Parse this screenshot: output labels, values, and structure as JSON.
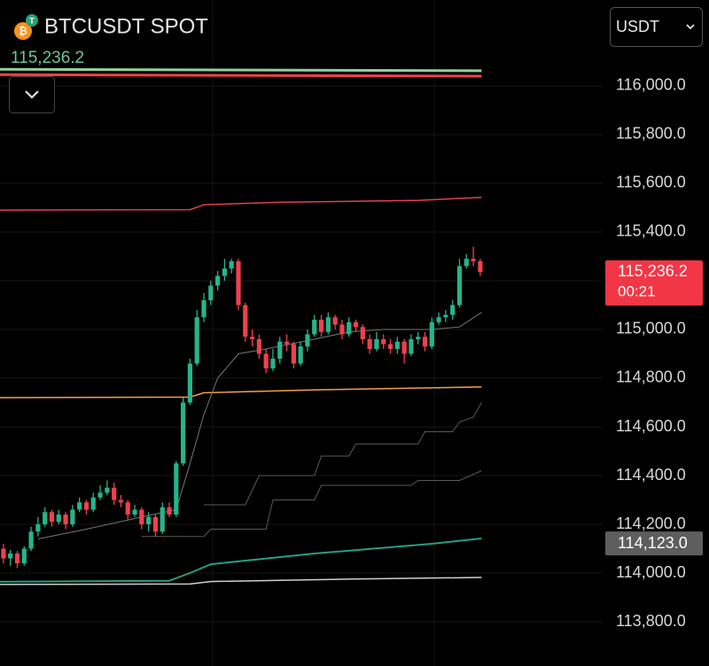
{
  "header": {
    "title": "BTCUSDT SPOT",
    "currency": "USDT"
  },
  "chart_data": {
    "type": "candlestick",
    "last_price": {
      "value": 115236.2,
      "label": "115,236.2"
    },
    "countdown": "00:21",
    "marker_price": {
      "value": 114123.0,
      "label": "114,123.0"
    },
    "up_color": "#26b48c",
    "down_color": "#f0404f",
    "xlim": [
      -0.5,
      69.4
    ],
    "ylim": [
      113618.2,
      116352.7
    ],
    "yticks": [
      {
        "value": 113800,
        "label": "113,800.0"
      },
      {
        "value": 114000,
        "label": "114,000.0"
      },
      {
        "value": 114200,
        "label": "114,200.0"
      },
      {
        "value": 114400,
        "label": "114,400.0"
      },
      {
        "value": 114600,
        "label": "114,600.0"
      },
      {
        "value": 114800,
        "label": "114,800.0"
      },
      {
        "value": 115000,
        "label": "115,000.0"
      },
      {
        "value": 115200,
        "label": "115,200.0"
      },
      {
        "value": 115400,
        "label": "115,400.0"
      },
      {
        "value": 115600,
        "label": "115,600.0"
      },
      {
        "value": 115800,
        "label": "115,800.0"
      },
      {
        "value": 116000,
        "label": "116,000.0"
      }
    ],
    "grid": true,
    "open": [
      114100,
      114060,
      114080,
      114040,
      114100,
      114170,
      114200,
      114250,
      114210,
      114240,
      114200,
      114260,
      114290,
      114260,
      114310,
      114330,
      114350,
      114300,
      114290,
      114240,
      114260,
      114200,
      114230,
      114170,
      114270,
      114240,
      114450,
      114700,
      114860,
      115050,
      115120,
      115180,
      115220,
      115250,
      115280,
      115100,
      114970,
      114960,
      114900,
      114840,
      114880,
      114950,
      114940,
      114860,
      114930,
      114980,
      115040,
      114990,
      115050,
      115020,
      114980,
      115030,
      115010,
      114960,
      114920,
      114960,
      114940,
      114920,
      114950,
      114900,
      114960,
      114970,
      114930,
      115030,
      115050,
      115060,
      115100,
      115260,
      115290,
      115280
    ],
    "high": [
      114120,
      114095,
      114090,
      114110,
      114190,
      114230,
      114270,
      114260,
      114260,
      114250,
      114280,
      114310,
      114300,
      114330,
      114360,
      114380,
      114370,
      114320,
      114300,
      114280,
      114270,
      114250,
      114240,
      114290,
      114290,
      114460,
      114720,
      114880,
      115080,
      115150,
      115200,
      115240,
      115290,
      115290,
      115290,
      115110,
      115000,
      114980,
      114920,
      114920,
      114970,
      114980,
      114950,
      114950,
      115000,
      115060,
      115060,
      115070,
      115060,
      115040,
      115050,
      115040,
      115020,
      114980,
      114990,
      114980,
      114960,
      114970,
      114960,
      114980,
      114990,
      114990,
      115050,
      115070,
      115080,
      115120,
      115290,
      115310,
      115340,
      115290
    ],
    "low": [
      114040,
      114030,
      114020,
      114030,
      114090,
      114150,
      114190,
      114190,
      114200,
      114180,
      114190,
      114250,
      114240,
      114250,
      114300,
      114320,
      114280,
      114270,
      114220,
      114230,
      114180,
      114170,
      114150,
      114160,
      114230,
      114230,
      114440,
      114690,
      114850,
      115030,
      115100,
      115160,
      115200,
      115230,
      115080,
      114950,
      114930,
      114880,
      114820,
      114830,
      114860,
      114910,
      114840,
      114850,
      114910,
      114970,
      114970,
      114980,
      115000,
      114960,
      114970,
      114990,
      114940,
      114900,
      114910,
      114920,
      114900,
      114900,
      114860,
      114890,
      114940,
      114910,
      114920,
      115020,
      115030,
      115040,
      115090,
      115250,
      115260,
      115220
    ],
    "close": [
      114060,
      114080,
      114040,
      114100,
      114170,
      114200,
      114250,
      114210,
      114240,
      114200,
      114260,
      114290,
      114260,
      114310,
      114330,
      114350,
      114300,
      114290,
      114240,
      114260,
      114200,
      114230,
      114170,
      114270,
      114240,
      114450,
      114700,
      114860,
      115050,
      115120,
      115180,
      115220,
      115250,
      115280,
      115100,
      114970,
      114960,
      114900,
      114840,
      114880,
      114950,
      114940,
      114860,
      114930,
      114980,
      115040,
      114990,
      115050,
      115020,
      114980,
      115030,
      115010,
      114960,
      114920,
      114960,
      114940,
      114920,
      114950,
      114900,
      114960,
      114970,
      114930,
      115030,
      115050,
      115060,
      115100,
      115260,
      115290,
      115280,
      115236.2
    ],
    "overlays": [
      {
        "color": "#8fd19e",
        "width": 3,
        "x": [
          -0.5,
          69.2
        ],
        "values": [
          116068,
          116062
        ]
      },
      {
        "color": "#f0404f",
        "width": 3,
        "x": [
          -0.5,
          69.2
        ],
        "values": [
          116046,
          116040
        ]
      },
      {
        "color": "#e0414f",
        "width": 1.5,
        "x": [
          -0.5,
          27,
          29,
          40,
          60,
          69.2
        ],
        "values": [
          115490,
          115492,
          115512,
          115522,
          115530,
          115542
        ]
      },
      {
        "color": "#f5a04a",
        "width": 1.5,
        "x": [
          -0.5,
          27,
          29,
          45,
          69.2
        ],
        "values": [
          114720,
          114722,
          114740,
          114752,
          114764
        ]
      },
      {
        "color": "#777777",
        "width": 1,
        "x": [
          5,
          12,
          20,
          25,
          27,
          29,
          31,
          34,
          38,
          45,
          50,
          55,
          62,
          66,
          69.2
        ],
        "values": [
          114140,
          114180,
          114230,
          114260,
          114450,
          114650,
          114800,
          114900,
          114920,
          114960,
          114990,
          115000,
          115000,
          115010,
          115070
        ]
      },
      {
        "color": "#5a5a5a",
        "width": 1,
        "x": [
          29,
          35,
          37,
          45,
          46,
          50,
          51,
          60,
          61,
          65,
          66,
          68,
          69.2
        ],
        "values": [
          114280,
          114280,
          114400,
          114400,
          114480,
          114480,
          114530,
          114530,
          114580,
          114580,
          114620,
          114640,
          114700
        ]
      },
      {
        "color": "#5a5a5a",
        "width": 1,
        "x": [
          20,
          29,
          30,
          38,
          39,
          45,
          46,
          59,
          60,
          66,
          69.2
        ],
        "values": [
          114150,
          114150,
          114180,
          114180,
          114300,
          114300,
          114360,
          114360,
          114380,
          114380,
          114420
        ]
      },
      {
        "color": "#2a9d80",
        "width": 2,
        "x": [
          -0.5,
          24,
          27,
          30,
          45,
          62,
          69.2
        ],
        "values": [
          113964,
          113968,
          114000,
          114036,
          114080,
          114120,
          114142
        ]
      },
      {
        "color": "#d0d0d0",
        "width": 1.5,
        "x": [
          -0.5,
          27,
          30,
          50,
          69.2
        ],
        "values": [
          113953,
          113955,
          113965,
          113975,
          113982
        ]
      }
    ]
  }
}
